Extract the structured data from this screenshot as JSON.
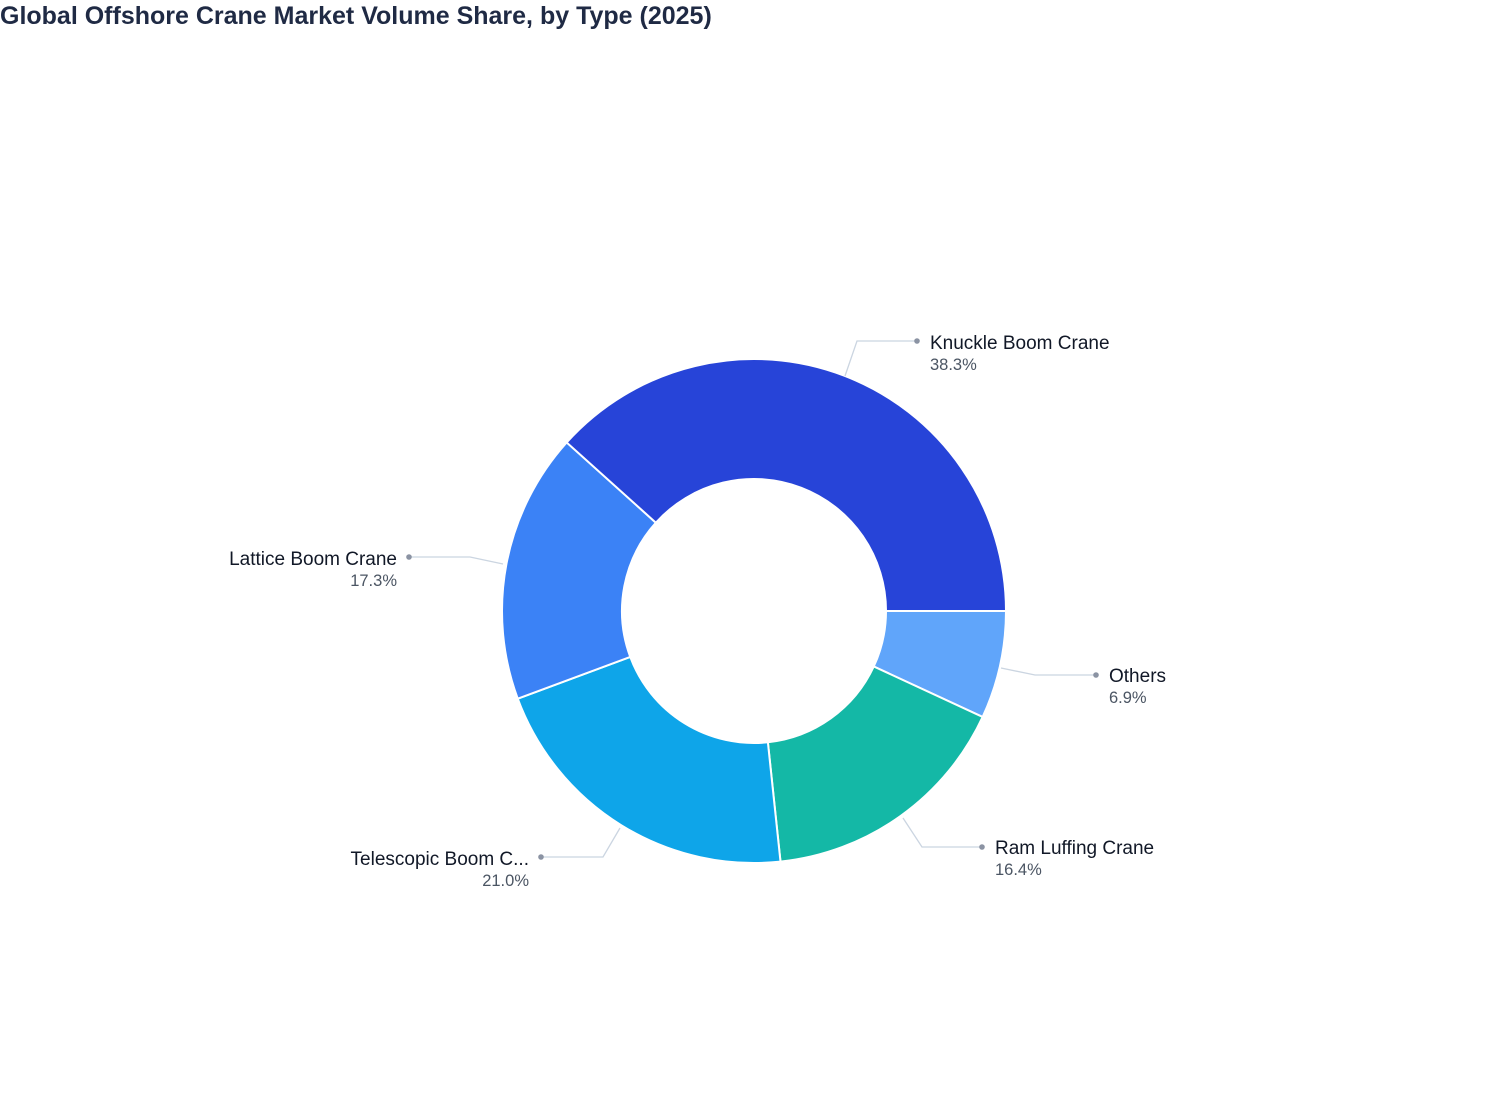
{
  "chart_data": {
    "type": "pie",
    "title": "Global Offshore Crane Market Volume Share, by Type (2025)",
    "donut": true,
    "categories": [
      "Others",
      "Ram Luffing Crane",
      "Telescopic Boom C...",
      "Lattice Boom Crane",
      "Knuckle Boom Crane"
    ],
    "values": [
      6.9,
      16.4,
      21.0,
      17.3,
      38.3
    ],
    "value_labels": [
      "6.9%",
      "16.4%",
      "21.0%",
      "17.3%",
      "38.3%"
    ],
    "colors": [
      "#60a5fa",
      "#14b8a6",
      "#0ea5e9",
      "#3b82f6",
      "#2744d8"
    ],
    "unit": "%",
    "legend": "outside labels with leader lines"
  }
}
